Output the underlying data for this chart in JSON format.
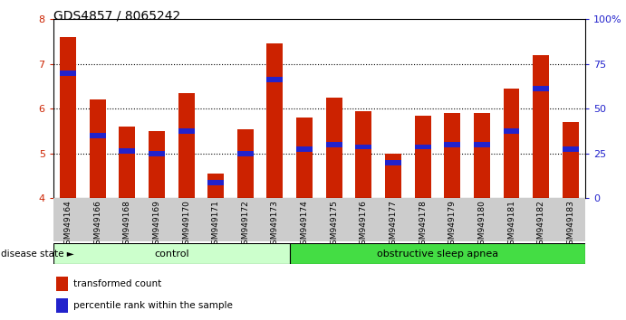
{
  "title": "GDS4857 / 8065242",
  "samples": [
    "GSM949164",
    "GSM949166",
    "GSM949168",
    "GSM949169",
    "GSM949170",
    "GSM949171",
    "GSM949172",
    "GSM949173",
    "GSM949174",
    "GSM949175",
    "GSM949176",
    "GSM949177",
    "GSM949178",
    "GSM949179",
    "GSM949180",
    "GSM949181",
    "GSM949182",
    "GSM949183"
  ],
  "bar_heights": [
    7.6,
    6.2,
    5.6,
    5.5,
    6.35,
    4.55,
    5.55,
    7.45,
    5.8,
    6.25,
    5.95,
    5.0,
    5.85,
    5.9,
    5.9,
    6.45,
    7.2,
    5.7
  ],
  "percentile_vals": [
    6.8,
    5.4,
    5.05,
    5.0,
    5.5,
    4.35,
    5.0,
    6.65,
    5.1,
    5.2,
    5.15,
    4.8,
    5.15,
    5.2,
    5.2,
    5.5,
    6.45,
    5.1
  ],
  "bar_color": "#cc2200",
  "dot_color": "#2222cc",
  "ylim": [
    4,
    8
  ],
  "yticks": [
    4,
    5,
    6,
    7,
    8
  ],
  "right_yticks": [
    0,
    25,
    50,
    75,
    100
  ],
  "right_ytick_labels": [
    "0",
    "25",
    "50",
    "75",
    "100%"
  ],
  "groups": [
    {
      "label": "control",
      "start": 0,
      "end": 8,
      "color": "#ccffcc"
    },
    {
      "label": "obstructive sleep apnea",
      "start": 8,
      "end": 18,
      "color": "#44dd44"
    }
  ],
  "disease_state_label": "disease state",
  "legend": [
    {
      "label": "transformed count",
      "color": "#cc2200"
    },
    {
      "label": "percentile rank within the sample",
      "color": "#2222cc"
    }
  ],
  "bar_width": 0.55,
  "xlabel_fontsize": 6.5,
  "title_fontsize": 10,
  "axis_label_color_left": "#cc2200",
  "axis_label_color_right": "#2222cc",
  "tick_label_bg": "#cccccc"
}
